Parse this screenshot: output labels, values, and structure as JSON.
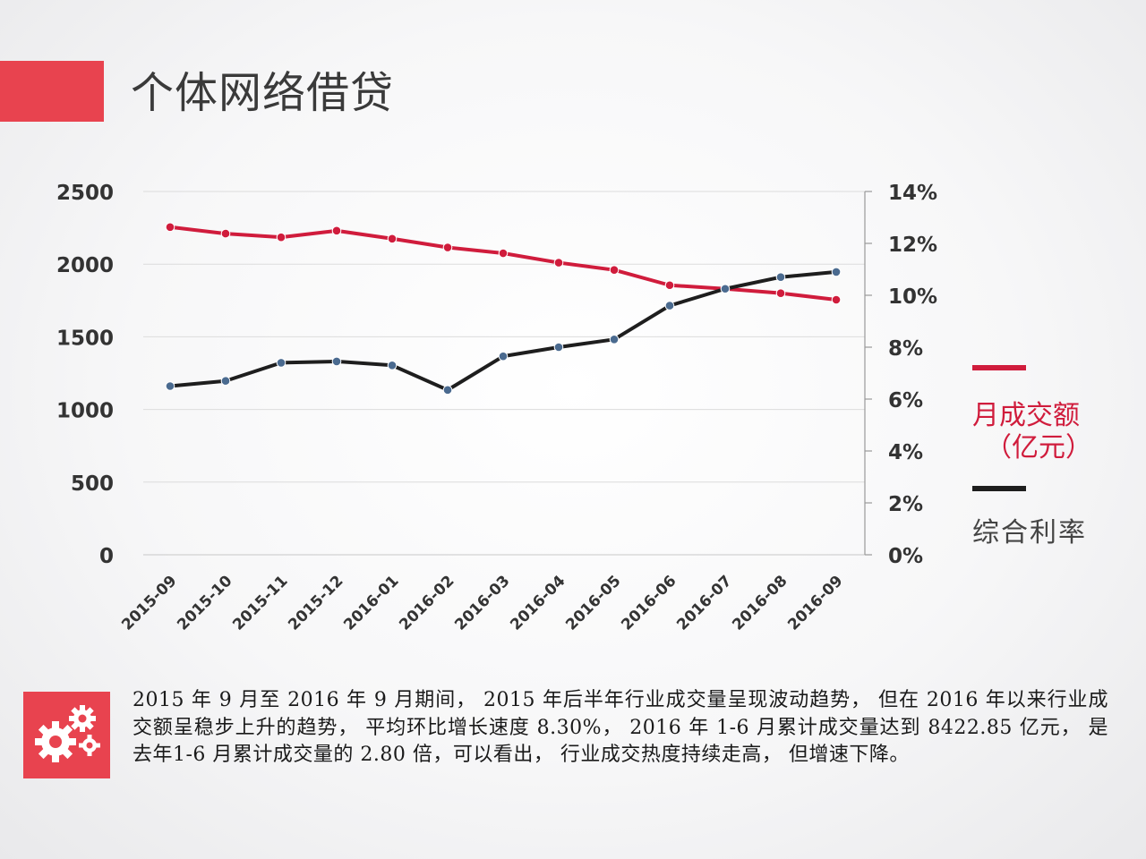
{
  "page": {
    "title": "个体网络借贷"
  },
  "legend": {
    "series1_line1": "月成交额",
    "series1_line2": "（亿元）",
    "series2": "综合利率"
  },
  "description": "2015 年 9 月至 2016 年 9 月期间， 2015 年后半年行业成交量呈现波动趋势， 但在 2016 年以来行业成交额呈稳步上升的趋势， 平均环比增长速度 8.30%， 2016 年 1-6 月累计成交量达到 8422.85 亿元， 是去年1-6 月累计成交量的 2.80 倍，可以看出， 行业成交热度持续走高， 但增速下降。",
  "colors": {
    "accent": "#e8434f",
    "series_red": "#d01c3c",
    "series_black": "#1e1e1e",
    "marker": "#4a6a8f"
  },
  "chart_data": {
    "type": "line",
    "categories": [
      "2015-09",
      "2015-10",
      "2015-11",
      "2015-12",
      "2016-01",
      "2016-02",
      "2016-03",
      "2016-04",
      "2016-05",
      "2016-06",
      "2016-07",
      "2016-08",
      "2016-09"
    ],
    "series": [
      {
        "name": "月成交额（亿元）",
        "axis": "left",
        "color": "#d01c3c",
        "values": [
          2255,
          2210,
          2185,
          2230,
          2175,
          2115,
          2075,
          2010,
          1960,
          1855,
          1830,
          1800,
          1755
        ]
      },
      {
        "name": "综合利率",
        "axis": "right",
        "color": "#1e1e1e",
        "values": [
          6.5,
          6.7,
          7.4,
          7.45,
          7.3,
          6.35,
          7.65,
          8.0,
          8.3,
          9.6,
          10.25,
          10.7,
          10.9
        ]
      }
    ],
    "y_left": {
      "min": 0,
      "max": 2500,
      "ticks": [
        "0",
        "500",
        "1000",
        "1500",
        "2000",
        "2500"
      ]
    },
    "y_right": {
      "min": 0,
      "max": 14,
      "ticks": [
        "0%",
        "2%",
        "4%",
        "6%",
        "8%",
        "10%",
        "12%",
        "14%"
      ]
    },
    "grid": true
  }
}
